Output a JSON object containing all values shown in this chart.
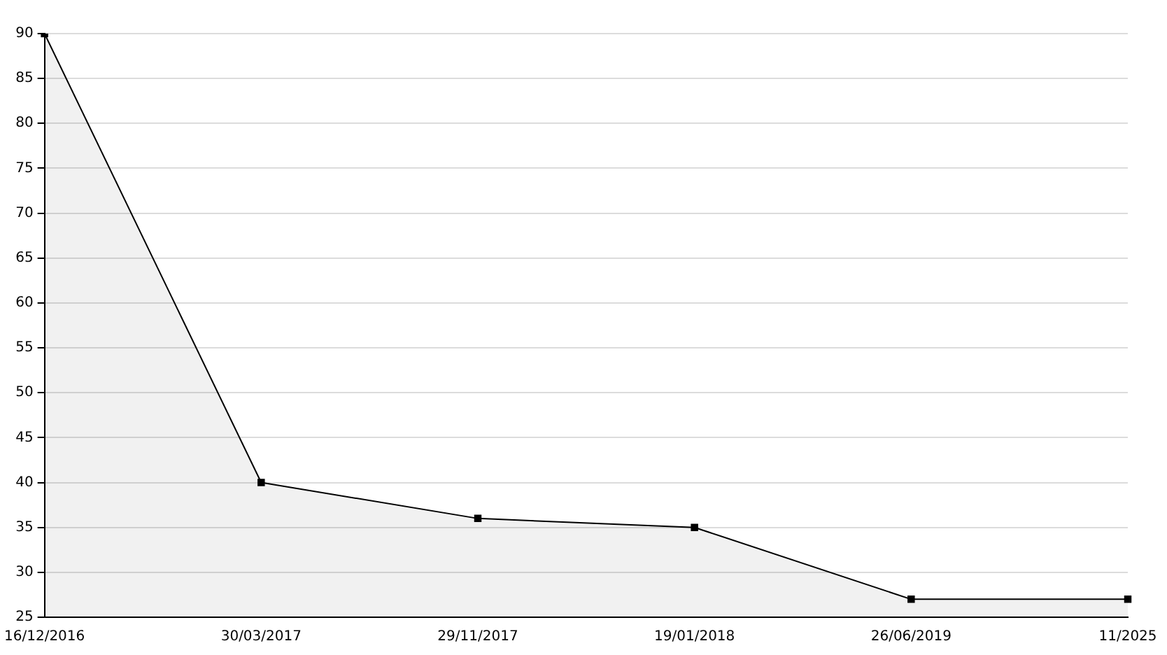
{
  "chart_data": {
    "type": "area",
    "categories": [
      "16/12/2016",
      "30/03/2017",
      "29/11/2017",
      "19/01/2018",
      "26/06/2019",
      "11/2025"
    ],
    "series": [
      {
        "color": "#000000",
        "values": [
          90,
          40,
          36,
          35,
          27,
          27
        ]
      }
    ],
    "ylim": [
      25,
      90
    ],
    "yticks": [
      25,
      30,
      35,
      40,
      45,
      50,
      55,
      60,
      65,
      70,
      75,
      80,
      85,
      90
    ],
    "grid": "y",
    "marker": "square",
    "line_style": "solid",
    "legend": false
  }
}
